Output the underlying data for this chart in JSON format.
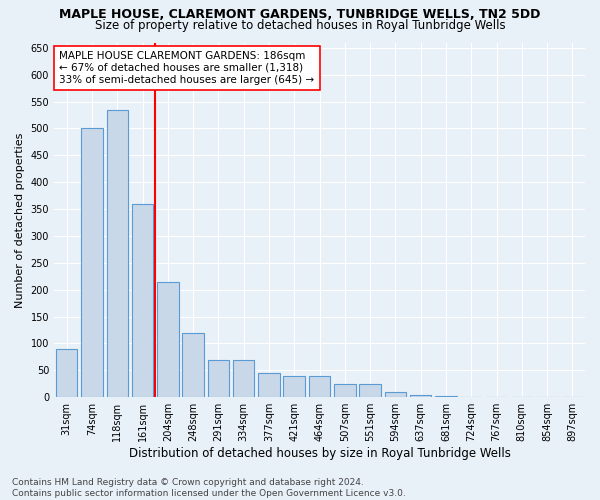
{
  "title1": "MAPLE HOUSE, CLAREMONT GARDENS, TUNBRIDGE WELLS, TN2 5DD",
  "title2": "Size of property relative to detached houses in Royal Tunbridge Wells",
  "xlabel": "Distribution of detached houses by size in Royal Tunbridge Wells",
  "ylabel": "Number of detached properties",
  "footnote": "Contains HM Land Registry data © Crown copyright and database right 2024.\nContains public sector information licensed under the Open Government Licence v3.0.",
  "categories": [
    "31sqm",
    "74sqm",
    "118sqm",
    "161sqm",
    "204sqm",
    "248sqm",
    "291sqm",
    "334sqm",
    "377sqm",
    "421sqm",
    "464sqm",
    "507sqm",
    "551sqm",
    "594sqm",
    "637sqm",
    "681sqm",
    "724sqm",
    "767sqm",
    "810sqm",
    "854sqm",
    "897sqm"
  ],
  "values": [
    90,
    500,
    535,
    360,
    215,
    120,
    70,
    70,
    45,
    40,
    40,
    25,
    25,
    10,
    5,
    3,
    1,
    0,
    0,
    1,
    0
  ],
  "bar_color": "#c8d8e8",
  "bar_edge_color": "#5b9bd5",
  "bar_linewidth": 0.8,
  "vline_x": 3.5,
  "vline_color": "red",
  "vline_linewidth": 1.5,
  "annotation_text": "MAPLE HOUSE CLAREMONT GARDENS: 186sqm\n← 67% of detached houses are smaller (1,318)\n33% of semi-detached houses are larger (645) →",
  "annotation_box_color": "white",
  "annotation_box_edge": "red",
  "ylim": [
    0,
    660
  ],
  "yticks": [
    0,
    50,
    100,
    150,
    200,
    250,
    300,
    350,
    400,
    450,
    500,
    550,
    600,
    650
  ],
  "bg_color": "#e8f0f8",
  "plot_bg_color": "#e8f0f8",
  "grid_color": "white",
  "title1_fontsize": 9,
  "title2_fontsize": 8.5,
  "xlabel_fontsize": 8.5,
  "ylabel_fontsize": 8,
  "tick_fontsize": 7,
  "annotation_fontsize": 7.5,
  "footnote_fontsize": 6.5
}
